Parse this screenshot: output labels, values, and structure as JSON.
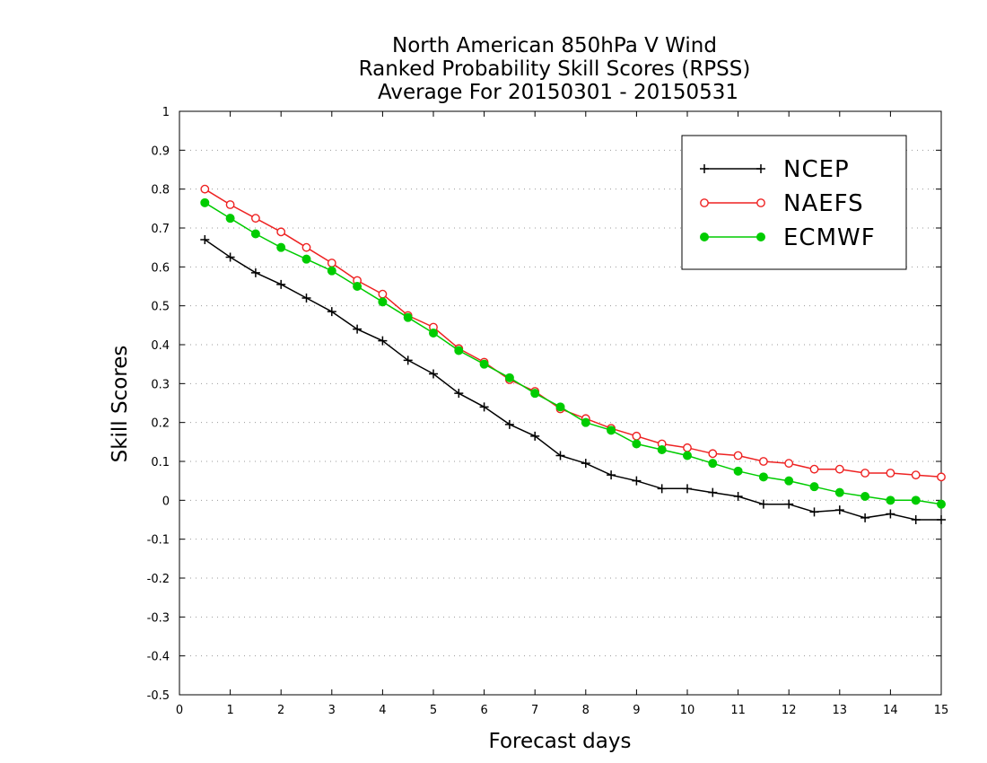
{
  "chart_data": {
    "type": "line",
    "title": [
      "North American 850hPa V Wind",
      "Ranked Probability Skill Scores (RPSS)",
      "Average For 20150301 - 20150531"
    ],
    "xlabel": "Forecast days",
    "ylabel": "Skill Scores",
    "xlim": [
      0,
      15
    ],
    "ylim": [
      -0.5,
      1
    ],
    "xticks": [
      "0",
      "1",
      "2",
      "3",
      "4",
      "5",
      "6",
      "7",
      "8",
      "9",
      "10",
      "11",
      "12",
      "13",
      "14",
      "15"
    ],
    "yticks": [
      "1",
      "0.9",
      "0.8",
      "0.7",
      "0.6",
      "0.5",
      "0.4",
      "0.3",
      "0.2",
      "0.1",
      "0",
      "-0.1",
      "-0.2",
      "-0.3",
      "-0.4",
      "-0.5"
    ],
    "grid": "horizontal dotted",
    "legend_position": "top-right",
    "x": [
      0.5,
      1,
      1.5,
      2,
      2.5,
      3,
      3.5,
      4,
      4.5,
      5,
      5.5,
      6,
      6.5,
      7,
      7.5,
      8,
      8.5,
      9,
      9.5,
      10,
      10.5,
      11,
      11.5,
      12,
      12.5,
      13,
      13.5,
      14,
      14.5,
      15
    ],
    "series": [
      {
        "name": "NCEP",
        "color": "#000000",
        "marker": "plus",
        "values": [
          0.67,
          0.625,
          0.585,
          0.555,
          0.52,
          0.485,
          0.44,
          0.41,
          0.36,
          0.325,
          0.275,
          0.24,
          0.195,
          0.165,
          0.115,
          0.095,
          0.065,
          0.05,
          0.03,
          0.03,
          0.02,
          0.01,
          -0.01,
          -0.01,
          -0.03,
          -0.025,
          -0.045,
          -0.035,
          -0.05,
          -0.05
        ]
      },
      {
        "name": "NAEFS",
        "color": "#ee2222",
        "marker": "open-circle",
        "values": [
          0.8,
          0.76,
          0.725,
          0.69,
          0.65,
          0.61,
          0.565,
          0.53,
          0.475,
          0.445,
          0.39,
          0.355,
          0.31,
          0.28,
          0.235,
          0.21,
          0.185,
          0.165,
          0.145,
          0.135,
          0.12,
          0.115,
          0.1,
          0.095,
          0.08,
          0.08,
          0.07,
          0.07,
          0.065,
          0.06
        ]
      },
      {
        "name": "ECMWF",
        "color": "#00cc00",
        "marker": "filled-circle",
        "values": [
          0.765,
          0.725,
          0.685,
          0.65,
          0.62,
          0.59,
          0.55,
          0.51,
          0.47,
          0.43,
          0.385,
          0.35,
          0.315,
          0.275,
          0.24,
          0.2,
          0.18,
          0.145,
          0.13,
          0.115,
          0.095,
          0.075,
          0.06,
          0.05,
          0.035,
          0.02,
          0.01,
          0.0,
          0.0,
          -0.01
        ]
      }
    ]
  }
}
